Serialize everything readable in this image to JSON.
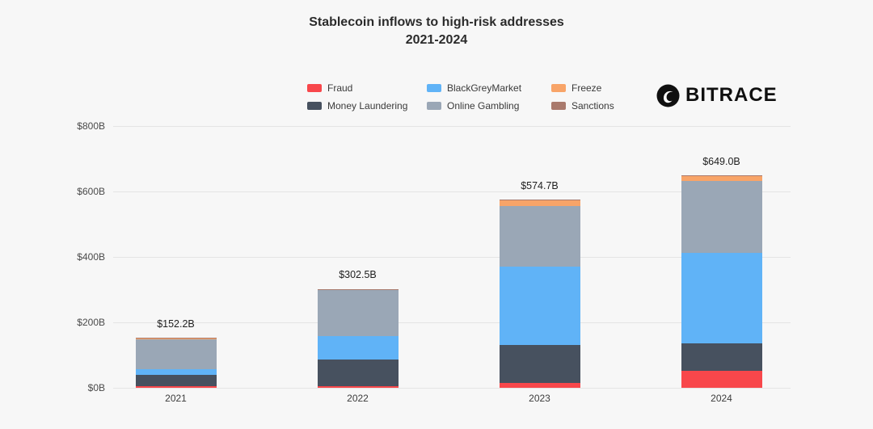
{
  "logo": {
    "text": "BITRACE"
  },
  "chart_data": {
    "type": "bar",
    "stacked": true,
    "title": "Stablecoin inflows to high-risk addresses",
    "subtitle": "2021-2024",
    "categories": [
      "2021",
      "2022",
      "2023",
      "2024"
    ],
    "series": [
      {
        "name": "Fraud",
        "color": "#f8474b",
        "values": [
          4,
          5,
          15,
          52
        ]
      },
      {
        "name": "Money Laundering",
        "color": "#47515f",
        "values": [
          35,
          82,
          115,
          85
        ]
      },
      {
        "name": "BlackGreyMarket",
        "color": "#60b3f7",
        "values": [
          18,
          72,
          240,
          275
        ]
      },
      {
        "name": "Online Gambling",
        "color": "#9aa7b6",
        "values": [
          93,
          140,
          185,
          220
        ]
      },
      {
        "name": "Freeze",
        "color": "#f8a468",
        "values": [
          1.5,
          3,
          18,
          15
        ]
      },
      {
        "name": "Sanctions",
        "color": "#a97a6d",
        "values": [
          0.7,
          0.5,
          1.7,
          2
        ]
      }
    ],
    "totals": [
      "$152.2B",
      "$302.5B",
      "$574.7B",
      "$649.0B"
    ],
    "y_ticks": [
      "$0B",
      "$200B",
      "$400B",
      "$600B",
      "$800B"
    ],
    "ylim": [
      0,
      800
    ],
    "grid": true,
    "legend_position": "top"
  }
}
